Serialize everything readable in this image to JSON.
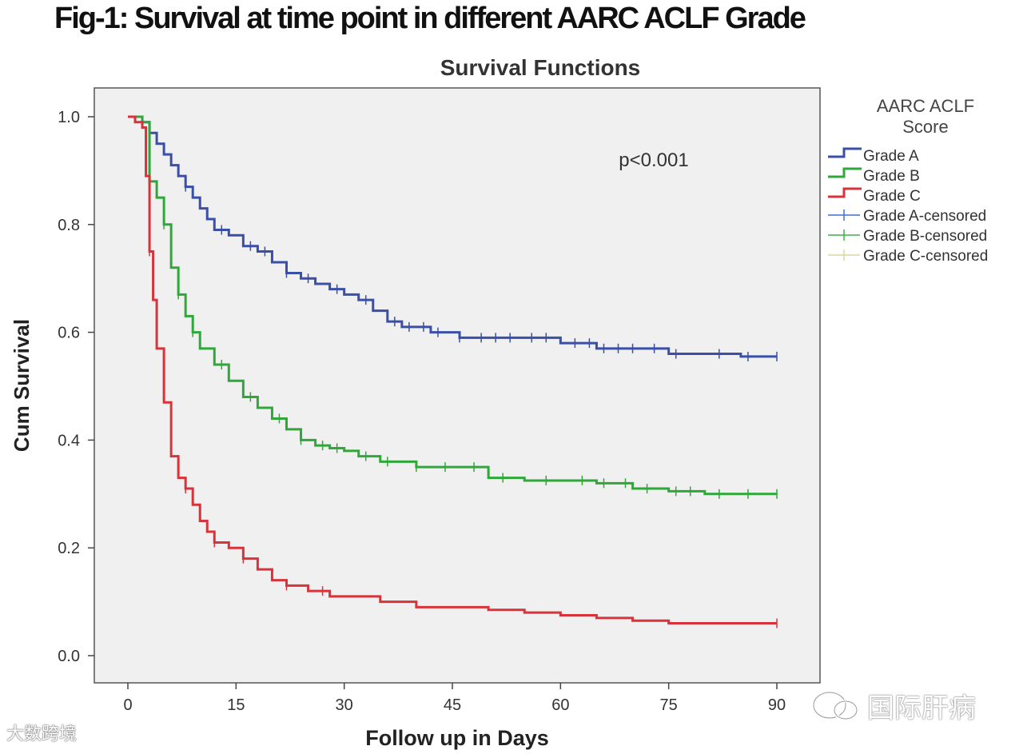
{
  "figure_title": "Fig-1: Survival at time point in different AARC ACLF Grade",
  "watermarks": {
    "left": "大数跨境",
    "right": "国际肝病"
  },
  "chart_data": {
    "type": "line",
    "title": "Survival Functions",
    "xlabel": "Follow up in Days",
    "ylabel": "Cum Survival",
    "xlim": [
      0,
      90
    ],
    "ylim": [
      0,
      1
    ],
    "x_ticks": [
      0,
      15,
      30,
      45,
      60,
      75,
      90
    ],
    "y_ticks": [
      0.0,
      0.2,
      0.4,
      0.6,
      0.8,
      1.0
    ],
    "x_tick_labels": [
      "0",
      "15",
      "30",
      "45",
      "60",
      "75",
      "90"
    ],
    "y_tick_labels": [
      "0.0",
      "0.2",
      "0.4",
      "0.6",
      "0.8",
      "1.0"
    ],
    "annotation": "p<0.001",
    "legend": {
      "title": "AARC ACLF Score",
      "position": "right",
      "entries": [
        "Grade A",
        "Grade B",
        "Grade C",
        "Grade A-censored",
        "Grade B-censored",
        "Grade C-censored"
      ]
    },
    "series": [
      {
        "name": "Grade A",
        "color": "#3a4fa8",
        "x": [
          0,
          1,
          2,
          3,
          4,
          5,
          6,
          7,
          8,
          9,
          10,
          11,
          12,
          14,
          16,
          18,
          20,
          22,
          24,
          26,
          28,
          30,
          32,
          34,
          36,
          38,
          40,
          42,
          44,
          46,
          50,
          55,
          60,
          65,
          70,
          75,
          80,
          85,
          90
        ],
        "y": [
          1.0,
          1.0,
          0.99,
          0.97,
          0.95,
          0.93,
          0.91,
          0.89,
          0.87,
          0.85,
          0.83,
          0.81,
          0.79,
          0.78,
          0.76,
          0.75,
          0.73,
          0.71,
          0.7,
          0.69,
          0.68,
          0.67,
          0.66,
          0.64,
          0.62,
          0.61,
          0.61,
          0.6,
          0.6,
          0.59,
          0.59,
          0.59,
          0.58,
          0.57,
          0.57,
          0.56,
          0.56,
          0.555,
          0.555
        ]
      },
      {
        "name": "Grade B",
        "color": "#2fa839",
        "x": [
          0,
          1,
          2,
          3,
          4,
          5,
          6,
          7,
          8,
          9,
          10,
          12,
          14,
          16,
          18,
          20,
          22,
          24,
          26,
          28,
          30,
          32,
          35,
          40,
          45,
          50,
          55,
          60,
          65,
          70,
          75,
          80,
          85,
          90
        ],
        "y": [
          1.0,
          1.0,
          0.99,
          0.88,
          0.85,
          0.8,
          0.72,
          0.67,
          0.63,
          0.6,
          0.57,
          0.54,
          0.51,
          0.48,
          0.46,
          0.44,
          0.42,
          0.4,
          0.39,
          0.385,
          0.38,
          0.37,
          0.36,
          0.35,
          0.35,
          0.33,
          0.325,
          0.325,
          0.32,
          0.31,
          0.305,
          0.3,
          0.3,
          0.3
        ]
      },
      {
        "name": "Grade C",
        "color": "#d8333a",
        "x": [
          0,
          1,
          2,
          2.5,
          3,
          3.5,
          4,
          5,
          6,
          7,
          8,
          9,
          10,
          11,
          12,
          14,
          16,
          18,
          20,
          22,
          25,
          28,
          30,
          35,
          40,
          45,
          50,
          55,
          60,
          65,
          70,
          75,
          80,
          85,
          90
        ],
        "y": [
          1.0,
          0.99,
          0.98,
          0.89,
          0.75,
          0.66,
          0.57,
          0.47,
          0.37,
          0.33,
          0.31,
          0.28,
          0.25,
          0.23,
          0.21,
          0.2,
          0.18,
          0.16,
          0.14,
          0.13,
          0.12,
          0.11,
          0.11,
          0.1,
          0.09,
          0.09,
          0.085,
          0.08,
          0.075,
          0.07,
          0.065,
          0.06,
          0.06,
          0.06,
          0.06
        ]
      }
    ],
    "censored": {
      "Grade A": [
        8,
        13,
        17,
        19,
        22,
        25,
        29,
        33,
        37,
        39,
        41,
        43,
        46,
        49,
        51,
        53,
        56,
        58,
        62,
        64,
        66,
        68,
        70,
        73,
        76,
        82,
        86,
        90
      ],
      "Grade B": [
        5,
        7,
        9,
        13,
        17,
        21,
        24,
        27,
        29,
        33,
        36,
        40,
        44,
        48,
        52,
        58,
        63,
        66,
        69,
        72,
        76,
        78,
        82,
        86,
        90
      ],
      "Grade C": [
        3,
        8,
        12,
        16,
        22,
        27,
        90
      ]
    }
  }
}
